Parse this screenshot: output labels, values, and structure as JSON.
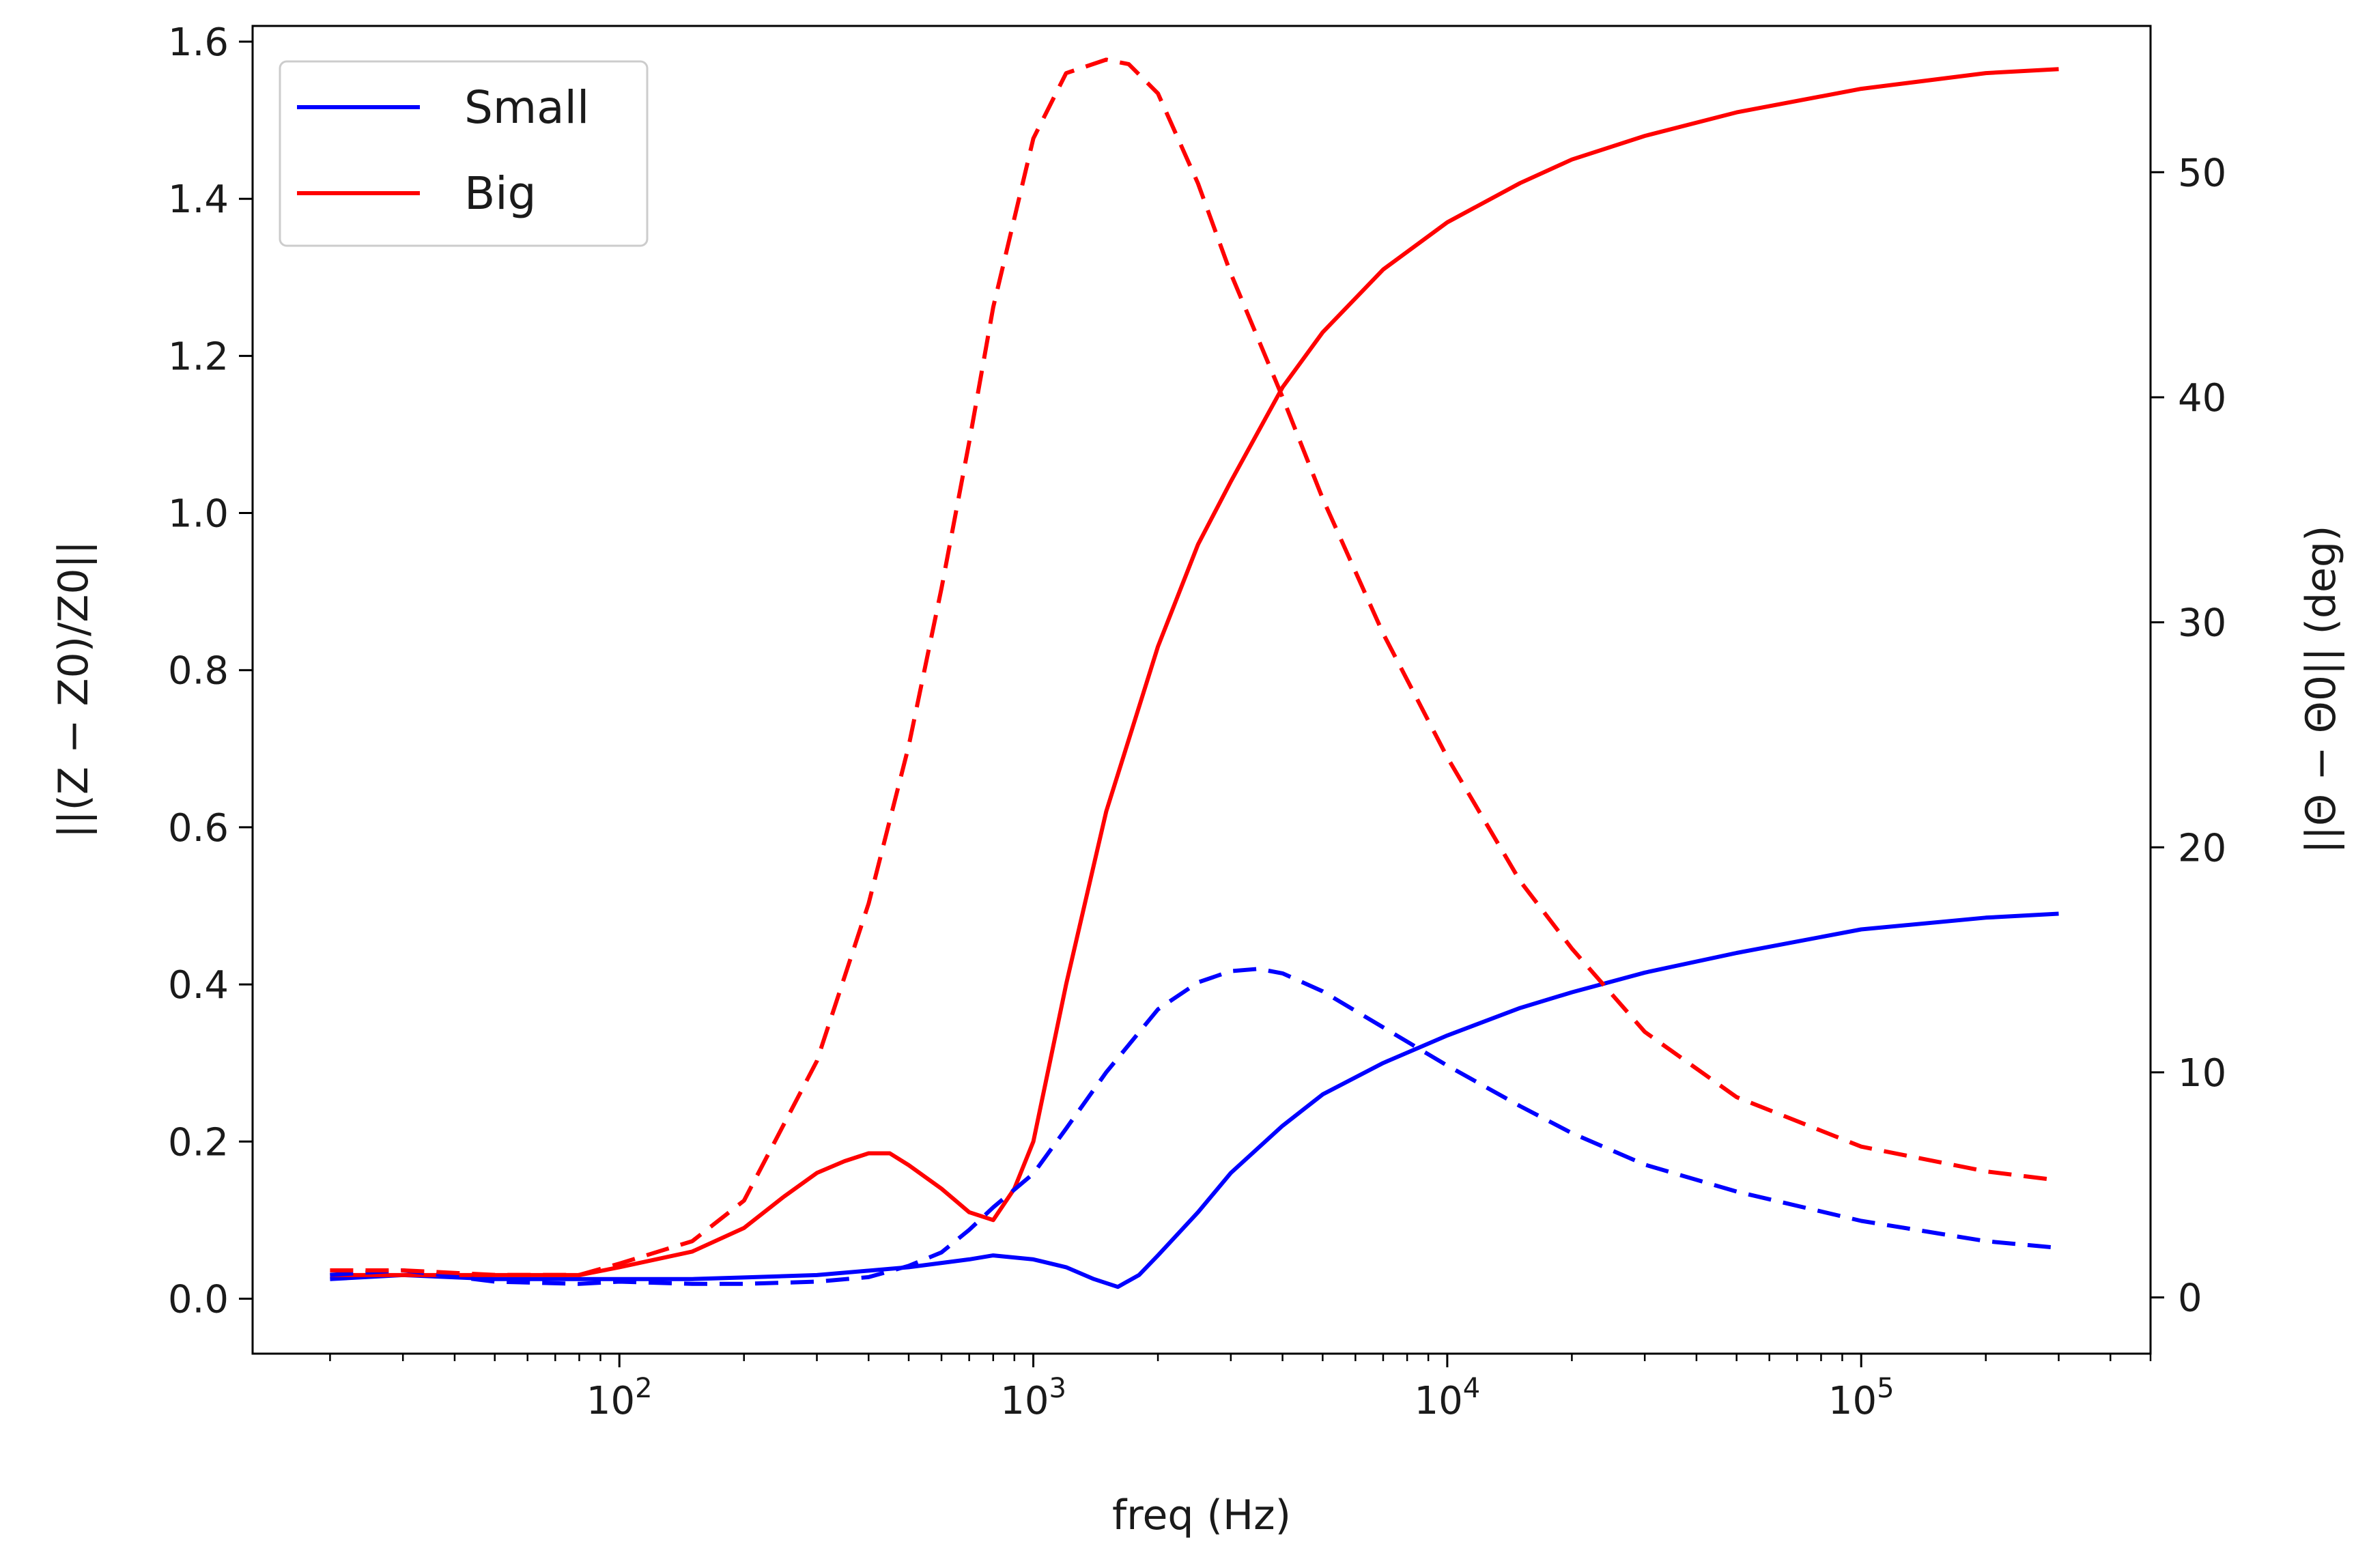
{
  "chart_data": {
    "type": "line",
    "xscale": "log",
    "xlabel": "freq (Hz)",
    "ylabel": "||(Z − Z0)/Z0||",
    "ylabel2": "||Θ − Θ0|| (deg)",
    "xlim": [
      13,
      500000
    ],
    "ylim": [
      -0.07,
      1.62
    ],
    "ylim2": [
      -2.5,
      56.5
    ],
    "xticks": [
      {
        "base": "10",
        "exp": "2",
        "value": 100
      },
      {
        "base": "10",
        "exp": "3",
        "value": 1000
      },
      {
        "base": "10",
        "exp": "4",
        "value": 10000
      },
      {
        "base": "10",
        "exp": "5",
        "value": 100000
      }
    ],
    "yticks": [
      "0.0",
      "0.2",
      "0.4",
      "0.6",
      "0.8",
      "1.0",
      "1.2",
      "1.4",
      "1.6"
    ],
    "yticks2": [
      "0",
      "10",
      "20",
      "30",
      "40",
      "50"
    ],
    "legend": {
      "position": "top-left",
      "entries": [
        "Small",
        "Big"
      ]
    },
    "colors": {
      "Small": "#0000ff",
      "Big": "#ff0000"
    },
    "series": [
      {
        "name": "Small",
        "axis": "left",
        "style": "solid",
        "color": "#0000ff",
        "x": [
          20,
          30,
          50,
          80,
          100,
          150,
          200,
          300,
          500,
          700,
          800,
          1000,
          1200,
          1400,
          1600,
          1800,
          2000,
          2500,
          3000,
          4000,
          5000,
          7000,
          10000,
          15000,
          20000,
          30000,
          50000,
          100000,
          200000,
          300000
        ],
        "y": [
          0.025,
          0.03,
          0.025,
          0.025,
          0.025,
          0.025,
          0.027,
          0.03,
          0.04,
          0.05,
          0.055,
          0.05,
          0.04,
          0.025,
          0.015,
          0.03,
          0.055,
          0.11,
          0.16,
          0.22,
          0.26,
          0.3,
          0.335,
          0.37,
          0.39,
          0.415,
          0.44,
          0.47,
          0.485,
          0.49
        ]
      },
      {
        "name": "Big",
        "axis": "left",
        "style": "solid",
        "color": "#ff0000",
        "x": [
          20,
          30,
          50,
          80,
          100,
          150,
          200,
          250,
          300,
          350,
          400,
          450,
          500,
          600,
          700,
          800,
          900,
          1000,
          1200,
          1500,
          2000,
          2500,
          3000,
          4000,
          5000,
          7000,
          10000,
          15000,
          20000,
          30000,
          50000,
          100000,
          200000,
          300000
        ],
        "y": [
          0.03,
          0.03,
          0.03,
          0.03,
          0.04,
          0.06,
          0.09,
          0.13,
          0.16,
          0.175,
          0.185,
          0.185,
          0.17,
          0.14,
          0.11,
          0.1,
          0.14,
          0.2,
          0.4,
          0.62,
          0.83,
          0.96,
          1.04,
          1.16,
          1.23,
          1.31,
          1.37,
          1.42,
          1.45,
          1.48,
          1.51,
          1.54,
          1.56,
          1.565
        ]
      },
      {
        "name": "Small",
        "axis": "right",
        "style": "dashed",
        "color": "#0000ff",
        "x": [
          20,
          30,
          50,
          80,
          100,
          150,
          200,
          300,
          400,
          500,
          600,
          700,
          800,
          1000,
          1200,
          1500,
          2000,
          2500,
          3000,
          3500,
          4000,
          5000,
          7000,
          10000,
          15000,
          20000,
          30000,
          50000,
          100000,
          200000,
          300000
        ],
        "y": [
          1.0,
          1.2,
          0.7,
          0.6,
          0.7,
          0.6,
          0.6,
          0.7,
          0.9,
          1.4,
          2.0,
          3.0,
          4.0,
          5.5,
          7.5,
          10.0,
          12.8,
          14.0,
          14.5,
          14.6,
          14.4,
          13.6,
          12.0,
          10.3,
          8.5,
          7.3,
          5.9,
          4.7,
          3.4,
          2.5,
          2.2
        ]
      },
      {
        "name": "Big",
        "axis": "right",
        "style": "dashed",
        "color": "#ff0000",
        "x": [
          20,
          30,
          50,
          80,
          100,
          150,
          200,
          300,
          400,
          500,
          600,
          700,
          800,
          1000,
          1200,
          1500,
          1700,
          2000,
          2500,
          3000,
          4000,
          5000,
          7000,
          10000,
          15000,
          20000,
          30000,
          50000,
          100000,
          200000,
          300000
        ],
        "y": [
          1.2,
          1.2,
          1.0,
          1.0,
          1.5,
          2.5,
          4.3,
          10.5,
          17.5,
          24.5,
          31.5,
          38.0,
          44.0,
          51.5,
          54.4,
          55.0,
          54.8,
          53.5,
          49.5,
          45.5,
          40.0,
          35.5,
          29.5,
          24.0,
          18.5,
          15.5,
          11.8,
          8.9,
          6.7,
          5.6,
          5.2
        ]
      }
    ]
  }
}
